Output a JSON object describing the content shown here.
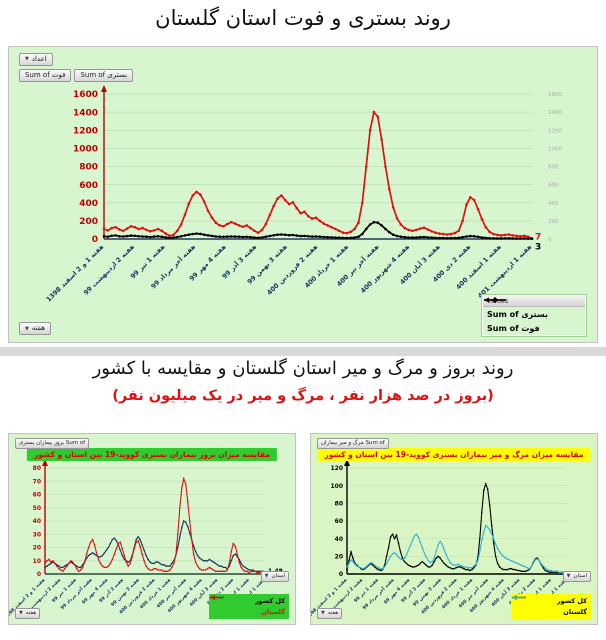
{
  "section1": {
    "title": "روند بستری و فوت استان گلستان",
    "panel_bg": "#d7f5cf",
    "buttons": {
      "numbers": "اعداد",
      "sum_fot": "Sum of فوت",
      "sum_bastari": "Sum of بستری",
      "week": "هفته"
    },
    "legend": {
      "header": "Values"
    }
  },
  "section2": {
    "title": "روند بروز و مرگ و میر استان گلستان و مقایسه با کشور",
    "subtitle": "(بروز در صد هزار نفر ، مرگ و میر در یک میلیون نفر)"
  },
  "chart_data": [
    {
      "id": "main",
      "type": "line",
      "title": "روند بستری و فوت استان گلستان",
      "axis_color": "#c00000",
      "baseline_color": "#203864",
      "y_left": {
        "min": 0,
        "max": 1600,
        "step": 200,
        "color": "#c00000"
      },
      "y_right": {
        "min": 0,
        "max": 1600,
        "step": 200,
        "color": "#a9a9a9"
      },
      "categories": [
        "هفته 1 و 2 اسفند 1398",
        "هفته 2 اردیبهشت 99",
        "هفته 1 تیر 99",
        "هفته آخر مرداد 99",
        "هفته 4 مهر 99",
        "هفته 3 آذر 99",
        "هفته 3 بهمن 99",
        "هفته 2 فروردین 400",
        "هفته 1 خرداد 400",
        "هفته آخر تیر 400",
        "هفته 4 شهریور 400",
        "هفته 3 آبان 400",
        "هفته 2 دی 400",
        "هفته 1 اسفند 400",
        "هفته 1 اردیبهشت 401"
      ],
      "series": [
        {
          "name": "Sum of بستری",
          "color": "#e01010",
          "legend_color": "#000000",
          "end_label": "7",
          "values": [
            110,
            95,
            120,
            130,
            105,
            90,
            115,
            140,
            130,
            110,
            120,
            100,
            85,
            95,
            110,
            90,
            60,
            35,
            45,
            90,
            160,
            270,
            390,
            480,
            520,
            490,
            410,
            310,
            235,
            180,
            150,
            140,
            165,
            185,
            170,
            150,
            135,
            150,
            120,
            90,
            70,
            100,
            165,
            265,
            365,
            445,
            480,
            430,
            385,
            405,
            340,
            285,
            300,
            250,
            225,
            235,
            200,
            170,
            150,
            130,
            110,
            90,
            70,
            65,
            80,
            110,
            180,
            400,
            800,
            1200,
            1400,
            1350,
            1100,
            800,
            550,
            350,
            230,
            160,
            120,
            100,
            90,
            100,
            115,
            125,
            105,
            85,
            70,
            60,
            55,
            50,
            55,
            65,
            90,
            200,
            380,
            460,
            430,
            330,
            220,
            130,
            80,
            55,
            45,
            40,
            45,
            50,
            40,
            35,
            30,
            35,
            25,
            7
          ]
        },
        {
          "name": "Sum of فوت",
          "color": "#000000",
          "legend_color": "#000000",
          "end_label": "3",
          "values": [
            30,
            25,
            35,
            40,
            30,
            28,
            32,
            38,
            35,
            30,
            28,
            25,
            22,
            26,
            30,
            24,
            18,
            12,
            15,
            22,
            30,
            40,
            48,
            55,
            60,
            56,
            48,
            40,
            34,
            28,
            25,
            24,
            26,
            28,
            27,
            25,
            22,
            24,
            20,
            16,
            13,
            18,
            25,
            33,
            41,
            47,
            50,
            46,
            42,
            44,
            38,
            33,
            34,
            30,
            27,
            28,
            25,
            22,
            20,
            18,
            16,
            14,
            12,
            11,
            13,
            17,
            25,
            55,
            110,
            160,
            185,
            180,
            150,
            110,
            75,
            48,
            33,
            25,
            20,
            17,
            15,
            17,
            20,
            22,
            18,
            15,
            12,
            11,
            10,
            9,
            10,
            11,
            13,
            20,
            28,
            32,
            30,
            24,
            17,
            12,
            9,
            8,
            7,
            7,
            8,
            8,
            7,
            6,
            6,
            7,
            5,
            3
          ]
        }
      ]
    },
    {
      "id": "incidence",
      "type": "line",
      "title": "مقایسه میزان بروز بیماران بستری کووید-19 بین استان و کشور",
      "title_bg": "#2fcb2f",
      "legend_bg": "#2fcb2f",
      "axis_color": "#c00000",
      "baseline_color": "#1f4e3c",
      "buttons": {
        "field": "Sum of بروز بیماران بستری",
        "province": "استان",
        "week": "هفته"
      },
      "y_left": {
        "min": 0,
        "max": 80,
        "step": 10,
        "color": "#c00000"
      },
      "categories": [
        "هفته 1 و 2 اسفند 1398",
        "هفته 2 اردیبهشت 99",
        "هفته 1 تیر 99",
        "هفته آخر مرداد 99",
        "هفته 4 مهر 99",
        "هفته 3 آذر 99",
        "هفته 3 بهمن 99",
        "هفته 2 فروردین 400",
        "هفته 1 خرداد 400",
        "هفته آخر تیر 400",
        "هفته 4 شهریور 400",
        "هفته 3 آبان 400",
        "هفته 2 دی 400",
        "هفته 1 اسفند 400",
        "هفته 1 اردیبهشت 401"
      ],
      "series": [
        {
          "name": "کل کشور",
          "color": "#16365c",
          "legend_color": "#000000",
          "end_label": "1.48",
          "end_color": "#000000",
          "values": [
            5,
            6,
            7,
            8,
            9,
            8,
            7,
            6,
            5,
            5,
            6,
            7,
            8,
            9,
            8,
            7,
            6,
            5,
            5,
            7,
            9,
            12,
            14,
            15,
            16,
            15,
            14,
            13,
            13,
            14,
            16,
            18,
            20,
            23,
            26,
            27,
            25,
            22,
            18,
            14,
            11,
            10,
            9,
            10,
            14,
            20,
            26,
            28,
            26,
            22,
            18,
            14,
            11,
            9,
            8,
            8,
            9,
            9,
            8,
            7,
            7,
            6,
            6,
            6,
            8,
            10,
            14,
            20,
            28,
            35,
            40,
            39,
            36,
            31,
            26,
            21,
            17,
            14,
            12,
            11,
            10,
            10,
            10,
            11,
            10,
            9,
            8,
            7,
            6,
            6,
            5,
            5,
            4,
            6,
            10,
            14,
            15,
            13,
            11,
            8,
            6,
            5,
            4,
            3,
            3,
            3,
            2,
            2,
            2,
            2,
            2,
            1.48
          ]
        },
        {
          "name": "گلستان",
          "color": "#e01010",
          "legend_color": "#e01010",
          "end_label": "0.35",
          "end_color": "#e01010",
          "values": [
            8,
            10,
            11,
            9,
            10,
            8,
            6,
            4,
            3,
            2,
            4,
            6,
            8,
            10,
            9,
            7,
            4,
            2,
            3,
            5,
            9,
            15,
            20,
            24,
            26,
            22,
            16,
            11,
            8,
            6,
            5,
            5,
            6,
            8,
            11,
            15,
            19,
            23,
            24,
            19,
            14,
            9,
            6,
            8,
            13,
            19,
            24,
            25,
            21,
            15,
            10,
            6,
            4,
            3,
            3,
            4,
            4,
            3,
            3,
            3,
            2,
            2,
            2,
            3,
            5,
            8,
            14,
            30,
            50,
            65,
            72,
            68,
            55,
            40,
            26,
            15,
            9,
            6,
            4,
            3,
            3,
            3,
            4,
            5,
            4,
            3,
            2,
            2,
            2,
            2,
            2,
            2,
            3,
            8,
            17,
            23,
            21,
            15,
            9,
            5,
            3,
            2,
            2,
            1,
            2,
            2,
            2,
            1,
            1,
            2,
            1,
            0.35
          ]
        }
      ]
    },
    {
      "id": "mortality",
      "type": "line",
      "title": "مقایسه میزان مرگ و میر بیماران بستری کووید-19 بین استان و کشور",
      "title_bg": "#ffff00",
      "legend_bg": "#ffff00",
      "axis_color": "#000000",
      "baseline_color": "#000000",
      "buttons": {
        "field": "Sum of مرگ و میر بیماران",
        "province": "استان",
        "week": "هفته"
      },
      "y_left": {
        "min": 0,
        "max": 120,
        "step": 20,
        "color": "#000000"
      },
      "categories": [
        "هفته 1 و 2 اسفند 1398",
        "هفته 2 اردیبهشت 99",
        "هفته 1 تیر 99",
        "هفته آخر مرداد 99",
        "هفته 4 مهر 99",
        "هفته 3 آذر 99",
        "هفته 3 بهمن 99",
        "هفته 2 فروردین 400",
        "هفته 1 خرداد 400",
        "هفته آخر تیر 400",
        "هفته 4 شهریور 400",
        "هفته 3 آبان 400",
        "هفته 2 دی 400",
        "هفته 1 اسفند 400",
        "هفته 1 اردیبهشت 401"
      ],
      "series": [
        {
          "name": "کل کشور",
          "color": "#000000",
          "legend_color": "#000000",
          "end_label": "1.67",
          "end_color": "#000000",
          "values": [
            5,
            15,
            25,
            18,
            12,
            10,
            8,
            6,
            5,
            6,
            8,
            10,
            12,
            10,
            8,
            6,
            5,
            4,
            5,
            10,
            20,
            30,
            42,
            45,
            40,
            44,
            35,
            25,
            18,
            14,
            12,
            10,
            9,
            8,
            8,
            9,
            10,
            12,
            14,
            12,
            10,
            8,
            8,
            10,
            14,
            18,
            20,
            18,
            15,
            12,
            10,
            8,
            7,
            6,
            6,
            7,
            8,
            8,
            7,
            6,
            5,
            5,
            4,
            5,
            7,
            10,
            18,
            40,
            70,
            95,
            102,
            96,
            78,
            55,
            35,
            20,
            12,
            8,
            6,
            5,
            5,
            5,
            6,
            6,
            5,
            5,
            4,
            4,
            3,
            3,
            3,
            4,
            5,
            8,
            13,
            17,
            18,
            15,
            11,
            7,
            4,
            3,
            2,
            2,
            2,
            2,
            2,
            2,
            2,
            2,
            2,
            1.67
          ]
        },
        {
          "name": "گلستان",
          "color": "#35b4d2",
          "legend_color": "#000000",
          "values": [
            8,
            12,
            16,
            14,
            11,
            9,
            8,
            7,
            6,
            7,
            9,
            11,
            13,
            12,
            10,
            8,
            7,
            6,
            6,
            8,
            12,
            16,
            20,
            23,
            24,
            22,
            19,
            17,
            16,
            18,
            22,
            27,
            32,
            38,
            43,
            45,
            42,
            36,
            30,
            24,
            19,
            15,
            13,
            14,
            18,
            26,
            33,
            37,
            34,
            28,
            22,
            17,
            13,
            11,
            10,
            10,
            11,
            10,
            9,
            8,
            8,
            7,
            7,
            7,
            9,
            11,
            15,
            25,
            38,
            48,
            55,
            53,
            50,
            45,
            40,
            34,
            29,
            25,
            22,
            20,
            18,
            17,
            16,
            15,
            14,
            13,
            12,
            11,
            10,
            9,
            8,
            7,
            6,
            8,
            12,
            16,
            17,
            15,
            12,
            9,
            7,
            5,
            4,
            4,
            3,
            3,
            3,
            2,
            2,
            2,
            2,
            2
          ]
        }
      ]
    }
  ]
}
